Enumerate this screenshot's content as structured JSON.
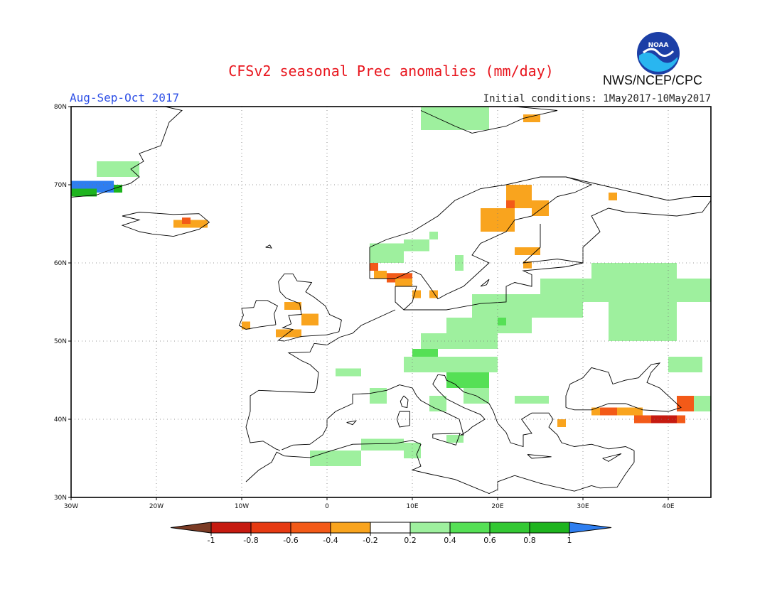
{
  "title": "CFSv2 seasonal Prec anomalies (mm/day)",
  "period": "Aug-Sep-Oct 2017",
  "initial_conditions": "Initial conditions: 1May2017-10May2017",
  "agency": "NWS/NCEP/CPC",
  "logo_text": "NOAA",
  "map": {
    "lon_range": [
      -30,
      45
    ],
    "lat_range": [
      30,
      80
    ],
    "lat_ticks": [
      "80N",
      "70N",
      "60N",
      "50N",
      "40N",
      "30N"
    ],
    "lon_ticks": [
      "30W",
      "20W",
      "10W",
      "0",
      "10E",
      "20E",
      "30E",
      "40E"
    ],
    "grid": true,
    "colors": {
      "land": "#ffffff",
      "coast": "#000000",
      "pos_light": "#9ef09e",
      "pos_mid": "#55e055",
      "pos_dark": "#1eb41e",
      "pos_max": "#2e7ef0",
      "neg_light": "#f9a41e",
      "neg_mid": "#f35a18",
      "neg_dark": "#c61a10",
      "neg_max": "#7b3b24"
    },
    "anomaly_patches": [
      {
        "lon": [
          -27,
          -22
        ],
        "lat": [
          71,
          73
        ],
        "level": "pos_light"
      },
      {
        "lon": [
          -30,
          -25
        ],
        "lat": [
          69,
          70.5
        ],
        "level": "pos_max"
      },
      {
        "lon": [
          -30,
          -27
        ],
        "lat": [
          68.5,
          69.5
        ],
        "level": "pos_dark"
      },
      {
        "lon": [
          -25,
          -24
        ],
        "lat": [
          69,
          70
        ],
        "level": "pos_dark"
      },
      {
        "lon": [
          -18,
          -14
        ],
        "lat": [
          64.5,
          65.5
        ],
        "level": "neg_light"
      },
      {
        "lon": [
          -17,
          -16
        ],
        "lat": [
          65,
          65.8
        ],
        "level": "neg_mid"
      },
      {
        "lon": [
          -10,
          -9
        ],
        "lat": [
          51.5,
          52.5
        ],
        "level": "neg_light"
      },
      {
        "lon": [
          -5,
          -3
        ],
        "lat": [
          54,
          55
        ],
        "level": "neg_light"
      },
      {
        "lon": [
          -3,
          -1
        ],
        "lat": [
          52,
          53.5
        ],
        "level": "neg_light"
      },
      {
        "lon": [
          -6,
          -3
        ],
        "lat": [
          50.5,
          51.5
        ],
        "level": "neg_light"
      },
      {
        "lon": [
          5,
          6
        ],
        "lat": [
          59,
          61.5
        ],
        "level": "neg_mid"
      },
      {
        "lon": [
          5.5,
          7
        ],
        "lat": [
          58,
          59
        ],
        "level": "neg_light"
      },
      {
        "lon": [
          7,
          10
        ],
        "lat": [
          57.5,
          58.7
        ],
        "level": "neg_mid"
      },
      {
        "lon": [
          8,
          10
        ],
        "lat": [
          57,
          58
        ],
        "level": "neg_light"
      },
      {
        "lon": [
          5,
          9
        ],
        "lat": [
          60,
          62.5
        ],
        "level": "pos_light"
      },
      {
        "lon": [
          9,
          12
        ],
        "lat": [
          61.5,
          63
        ],
        "level": "pos_light"
      },
      {
        "lon": [
          12,
          13
        ],
        "lat": [
          63,
          64
        ],
        "level": "pos_light"
      },
      {
        "lon": [
          10,
          11
        ],
        "lat": [
          55.5,
          56.5
        ],
        "level": "neg_light"
      },
      {
        "lon": [
          12,
          13
        ],
        "lat": [
          55.5,
          56.5
        ],
        "level": "neg_light"
      },
      {
        "lon": [
          18,
          22
        ],
        "lat": [
          64,
          67
        ],
        "level": "neg_light"
      },
      {
        "lon": [
          21,
          24
        ],
        "lat": [
          67,
          70
        ],
        "level": "neg_light"
      },
      {
        "lon": [
          24,
          26
        ],
        "lat": [
          66,
          68
        ],
        "level": "neg_light"
      },
      {
        "lon": [
          21,
          22
        ],
        "lat": [
          67,
          68
        ],
        "level": "neg_mid"
      },
      {
        "lon": [
          22,
          25
        ],
        "lat": [
          61,
          62
        ],
        "level": "neg_light"
      },
      {
        "lon": [
          23,
          24
        ],
        "lat": [
          59.3,
          60.2
        ],
        "level": "neg_light"
      },
      {
        "lon": [
          23,
          25
        ],
        "lat": [
          78,
          79
        ],
        "level": "neg_light"
      },
      {
        "lon": [
          33,
          34
        ],
        "lat": [
          68,
          69
        ],
        "level": "neg_light"
      },
      {
        "lon": [
          11,
          19
        ],
        "lat": [
          77,
          80
        ],
        "level": "pos_light"
      },
      {
        "lon": [
          17,
          30
        ],
        "lat": [
          53,
          56
        ],
        "level": "pos_light"
      },
      {
        "lon": [
          25,
          45
        ],
        "lat": [
          55,
          58
        ],
        "level": "pos_light"
      },
      {
        "lon": [
          31,
          41
        ],
        "lat": [
          58,
          60
        ],
        "level": "pos_light"
      },
      {
        "lon": [
          33,
          41
        ],
        "lat": [
          50,
          55
        ],
        "level": "pos_light"
      },
      {
        "lon": [
          14,
          24
        ],
        "lat": [
          51,
          53
        ],
        "level": "pos_light"
      },
      {
        "lon": [
          11,
          20
        ],
        "lat": [
          49,
          51
        ],
        "level": "pos_light"
      },
      {
        "lon": [
          15,
          16
        ],
        "lat": [
          59,
          61
        ],
        "level": "pos_light"
      },
      {
        "lon": [
          9,
          20
        ],
        "lat": [
          46,
          48
        ],
        "level": "pos_light"
      },
      {
        "lon": [
          10,
          13
        ],
        "lat": [
          48,
          49
        ],
        "level": "pos_mid"
      },
      {
        "lon": [
          20,
          21
        ],
        "lat": [
          52,
          53
        ],
        "level": "pos_mid"
      },
      {
        "lon": [
          14,
          19
        ],
        "lat": [
          44,
          46
        ],
        "level": "pos_mid"
      },
      {
        "lon": [
          16,
          19
        ],
        "lat": [
          42,
          44
        ],
        "level": "pos_light"
      },
      {
        "lon": [
          12,
          14
        ],
        "lat": [
          41,
          43
        ],
        "level": "pos_light"
      },
      {
        "lon": [
          1,
          4
        ],
        "lat": [
          45.5,
          46.5
        ],
        "level": "pos_light"
      },
      {
        "lon": [
          5,
          7
        ],
        "lat": [
          42,
          44
        ],
        "level": "pos_light"
      },
      {
        "lon": [
          22,
          26
        ],
        "lat": [
          42,
          43
        ],
        "level": "pos_light"
      },
      {
        "lon": [
          40,
          44
        ],
        "lat": [
          46,
          48
        ],
        "level": "pos_light"
      },
      {
        "lon": [
          42,
          45
        ],
        "lat": [
          41,
          43
        ],
        "level": "pos_light"
      },
      {
        "lon": [
          -2,
          4
        ],
        "lat": [
          34,
          36
        ],
        "level": "pos_light"
      },
      {
        "lon": [
          4,
          9
        ],
        "lat": [
          36,
          37.5
        ],
        "level": "pos_light"
      },
      {
        "lon": [
          9,
          11
        ],
        "lat": [
          35,
          37
        ],
        "level": "pos_light"
      },
      {
        "lon": [
          14,
          16
        ],
        "lat": [
          37,
          38
        ],
        "level": "pos_light"
      },
      {
        "lon": [
          31,
          37
        ],
        "lat": [
          40.5,
          41.5
        ],
        "level": "neg_light"
      },
      {
        "lon": [
          32,
          34
        ],
        "lat": [
          40.5,
          41.5
        ],
        "level": "neg_mid"
      },
      {
        "lon": [
          36,
          42
        ],
        "lat": [
          39.5,
          40.5
        ],
        "level": "neg_mid"
      },
      {
        "lon": [
          38,
          41
        ],
        "lat": [
          39.5,
          40.5
        ],
        "level": "neg_dark"
      },
      {
        "lon": [
          41,
          43
        ],
        "lat": [
          41,
          43
        ],
        "level": "neg_mid"
      },
      {
        "lon": [
          27,
          28
        ],
        "lat": [
          39,
          40
        ],
        "level": "neg_light"
      }
    ]
  },
  "colorbar": {
    "labels": [
      "-1",
      "-0.8",
      "-0.6",
      "-0.4",
      "-0.2",
      "0.2",
      "0.4",
      "0.6",
      "0.8",
      "1"
    ],
    "colors": [
      "#7b3b24",
      "#c61a10",
      "#e63a12",
      "#f35a18",
      "#f9a41e",
      "#ffffff",
      "#9ef09e",
      "#55e055",
      "#33c833",
      "#1eb41e",
      "#2e7ef0"
    ]
  }
}
